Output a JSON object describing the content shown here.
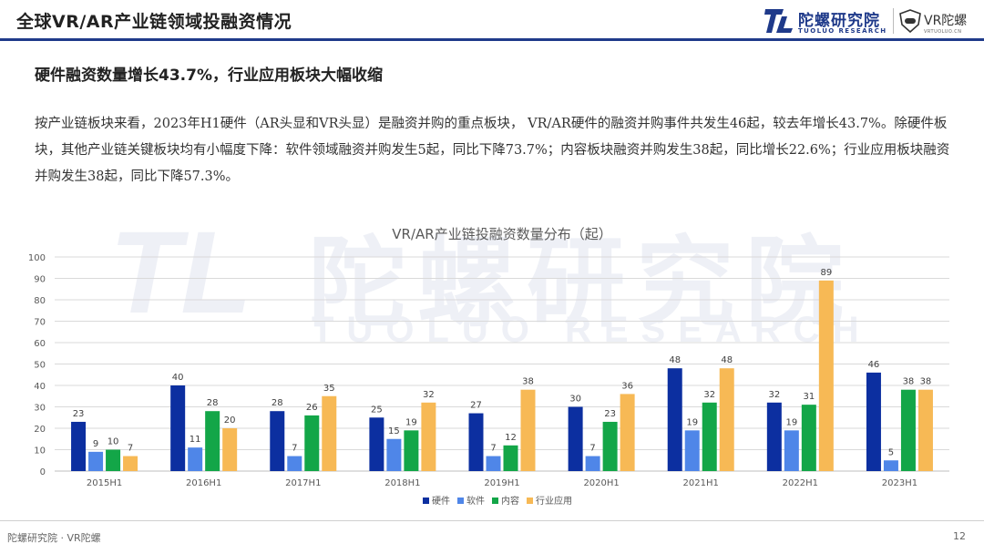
{
  "header": {
    "title": "全球VR/AR产业链领域投融资情况",
    "logo_cn": "陀螺研究院",
    "logo_en": "TUOLUO RESEARCH",
    "partner_logo": "VR陀螺",
    "partner_sub": "VRTUOLUO.CN"
  },
  "subtitle": "硬件融资数量增长43.7%，行业应用板块大幅收缩",
  "paragraph": "按产业链板块来看，2023年H1硬件（AR头显和VR头显）是融资并购的重点板块， VR/AR硬件的融资并购事件共发生46起，较去年增长43.7%。除硬件板块，其他产业链关键板块均有小幅度下降：软件领域融资并购发生5起，同比下降73.7%；内容板块融资并购发生38起，同比增长22.6%；行业应用板块融资并购发生38起，同比下降57.3%。",
  "watermark": {
    "mark": "TL",
    "cn": "陀螺研究院",
    "en": "TUOLUO RESEARCH"
  },
  "chart_data": {
    "type": "bar",
    "title": "VR/AR产业链投融资数量分布（起）",
    "categories": [
      "2015H1",
      "2016H1",
      "2017H1",
      "2018H1",
      "2019H1",
      "2020H1",
      "2021H1",
      "2022H1",
      "2023H1"
    ],
    "series": [
      {
        "name": "硬件",
        "color": "#0c2fa0",
        "values": [
          23,
          40,
          28,
          25,
          27,
          30,
          48,
          32,
          46
        ]
      },
      {
        "name": "软件",
        "color": "#4f86e8",
        "values": [
          9,
          11,
          7,
          15,
          7,
          7,
          19,
          19,
          5
        ]
      },
      {
        "name": "内容",
        "color": "#13a648",
        "values": [
          10,
          28,
          26,
          19,
          12,
          23,
          32,
          31,
          38
        ]
      },
      {
        "name": "行业应用",
        "color": "#f7b955",
        "values": [
          7,
          20,
          35,
          32,
          38,
          36,
          48,
          89,
          38
        ]
      }
    ],
    "ylim": [
      0,
      100
    ],
    "yticks": [
      0,
      10,
      20,
      30,
      40,
      50,
      60,
      70,
      80,
      90,
      100
    ],
    "grid": true,
    "legend_position": "bottom"
  },
  "footer": {
    "left": "陀螺研究院 · VR陀螺",
    "page": "12"
  }
}
